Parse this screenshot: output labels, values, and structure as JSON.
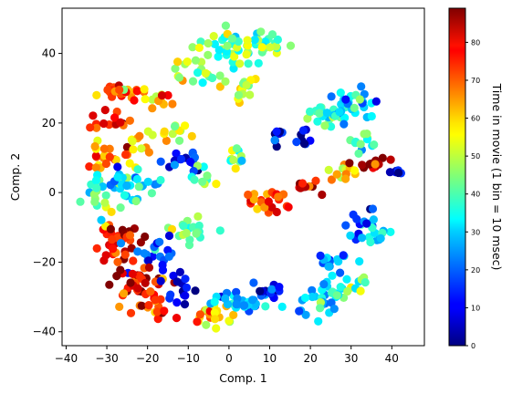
{
  "chart_data": {
    "type": "scatter",
    "xlabel": "Comp. 1",
    "ylabel": "Comp. 2",
    "xlim": [
      -41,
      48
    ],
    "ylim": [
      -44,
      53
    ],
    "xticks": [
      -40,
      -30,
      -20,
      -10,
      0,
      10,
      20,
      30,
      40
    ],
    "yticks": [
      -40,
      -20,
      0,
      20,
      40
    ],
    "grid": false,
    "colorbar": {
      "label": "Time in movie (1 bin = 10 msec)",
      "range": [
        0,
        89
      ],
      "ticks": [
        0,
        10,
        20,
        30,
        40,
        50,
        60,
        70,
        80
      ],
      "colormap": "jet"
    },
    "clusters": [
      {
        "x": 3,
        "y": 42,
        "t": 42,
        "spread": [
          10,
          4
        ],
        "n": 60
      },
      {
        "x": -8,
        "y": 35,
        "t": 48,
        "spread": [
          5,
          4
        ],
        "n": 20
      },
      {
        "x": 2,
        "y": 30,
        "t": 52,
        "spread": [
          5,
          3
        ],
        "n": 15
      },
      {
        "x": -26,
        "y": 29,
        "t": 72,
        "spread": [
          5,
          2
        ],
        "n": 25
      },
      {
        "x": -17,
        "y": 27,
        "t": 60,
        "spread": [
          3,
          2
        ],
        "n": 12
      },
      {
        "x": -28,
        "y": 20,
        "t": 75,
        "spread": [
          5,
          3
        ],
        "n": 15
      },
      {
        "x": -30,
        "y": 10,
        "t": 66,
        "spread": [
          5,
          5
        ],
        "n": 20
      },
      {
        "x": -22,
        "y": 12,
        "t": 60,
        "spread": [
          4,
          4
        ],
        "n": 12
      },
      {
        "x": -25,
        "y": 2,
        "t": 30,
        "spread": [
          7,
          4
        ],
        "n": 40
      },
      {
        "x": -12,
        "y": 10,
        "t": 15,
        "spread": [
          5,
          3
        ],
        "n": 15
      },
      {
        "x": -10,
        "y": -10,
        "t": 42,
        "spread": [
          4,
          4
        ],
        "n": 20
      },
      {
        "x": -28,
        "y": -15,
        "t": 78,
        "spread": [
          5,
          5
        ],
        "n": 40
      },
      {
        "x": -18,
        "y": -17,
        "t": 20,
        "spread": [
          5,
          4
        ],
        "n": 20
      },
      {
        "x": -22,
        "y": -25,
        "t": 80,
        "spread": [
          6,
          4
        ],
        "n": 35
      },
      {
        "x": -20,
        "y": -33,
        "t": 70,
        "spread": [
          5,
          3
        ],
        "n": 15
      },
      {
        "x": -5,
        "y": -35,
        "t": 60,
        "spread": [
          5,
          3
        ],
        "n": 20
      },
      {
        "x": 3,
        "y": -32,
        "t": 25,
        "spread": [
          6,
          3
        ],
        "n": 30
      },
      {
        "x": -12,
        "y": -28,
        "t": 10,
        "spread": [
          5,
          4
        ],
        "n": 15
      },
      {
        "x": 10,
        "y": -28,
        "t": 12,
        "spread": [
          5,
          3
        ],
        "n": 15
      },
      {
        "x": 22,
        "y": -30,
        "t": 30,
        "spread": [
          6,
          4
        ],
        "n": 30
      },
      {
        "x": 30,
        "y": -25,
        "t": 40,
        "spread": [
          4,
          4
        ],
        "n": 15
      },
      {
        "x": 25,
        "y": -20,
        "t": 22,
        "spread": [
          5,
          3
        ],
        "n": 15
      },
      {
        "x": 36,
        "y": -12,
        "t": 25,
        "spread": [
          3,
          3
        ],
        "n": 15
      },
      {
        "x": 32,
        "y": -8,
        "t": 12,
        "spread": [
          3,
          5
        ],
        "n": 12
      },
      {
        "x": 10,
        "y": -3,
        "t": 72,
        "spread": [
          4,
          3
        ],
        "n": 25
      },
      {
        "x": 18,
        "y": 2,
        "t": 82,
        "spread": [
          4,
          2
        ],
        "n": 10
      },
      {
        "x": 23,
        "y": 23,
        "t": 35,
        "spread": [
          4,
          3
        ],
        "n": 25
      },
      {
        "x": 30,
        "y": 25,
        "t": 30,
        "spread": [
          5,
          4
        ],
        "n": 30
      },
      {
        "x": 33,
        "y": 15,
        "t": 38,
        "spread": [
          3,
          3
        ],
        "n": 12
      },
      {
        "x": 28,
        "y": 6,
        "t": 60,
        "spread": [
          3,
          2
        ],
        "n": 12
      },
      {
        "x": 35,
        "y": 8,
        "t": 84,
        "spread": [
          3,
          2
        ],
        "n": 15
      },
      {
        "x": 42,
        "y": 6,
        "t": 8,
        "spread": [
          2,
          1
        ],
        "n": 8
      },
      {
        "x": 12,
        "y": 17,
        "t": 5,
        "spread": [
          1,
          2
        ],
        "n": 8
      },
      {
        "x": 18,
        "y": 15,
        "t": 4,
        "spread": [
          2,
          3
        ],
        "n": 8
      },
      {
        "x": 2,
        "y": 10,
        "t": 45,
        "spread": [
          3,
          3
        ],
        "n": 10
      },
      {
        "x": -12,
        "y": 17,
        "t": 55,
        "spread": [
          4,
          3
        ],
        "n": 12
      },
      {
        "x": -6,
        "y": 5,
        "t": 40,
        "spread": [
          3,
          3
        ],
        "n": 10
      },
      {
        "x": -32,
        "y": -3,
        "t": 45,
        "spread": [
          2,
          4
        ],
        "n": 10
      }
    ]
  }
}
